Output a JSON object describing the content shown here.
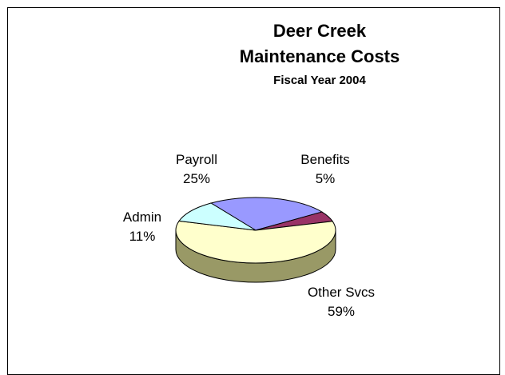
{
  "chart_data": {
    "type": "pie",
    "title": "Deer Creek",
    "title_line2": "Maintenance Costs",
    "subtitle": "Fiscal Year 2004",
    "slices": [
      {
        "label": "Payroll",
        "value": 25,
        "value_label": "25%",
        "color": "#9999ff",
        "side_color": "#5c5c99"
      },
      {
        "label": "Benefits",
        "value": 5,
        "value_label": "5%",
        "color": "#993366",
        "side_color": "#5c1f3d"
      },
      {
        "label": "Other Svcs",
        "value": 59,
        "value_label": "59%",
        "color": "#ffffcc",
        "side_color": "#999966"
      },
      {
        "label": "Admin",
        "value": 11,
        "value_label": "11%",
        "color": "#ccffff",
        "side_color": "#7a9999"
      }
    ],
    "legend": "none",
    "style": "3d"
  }
}
